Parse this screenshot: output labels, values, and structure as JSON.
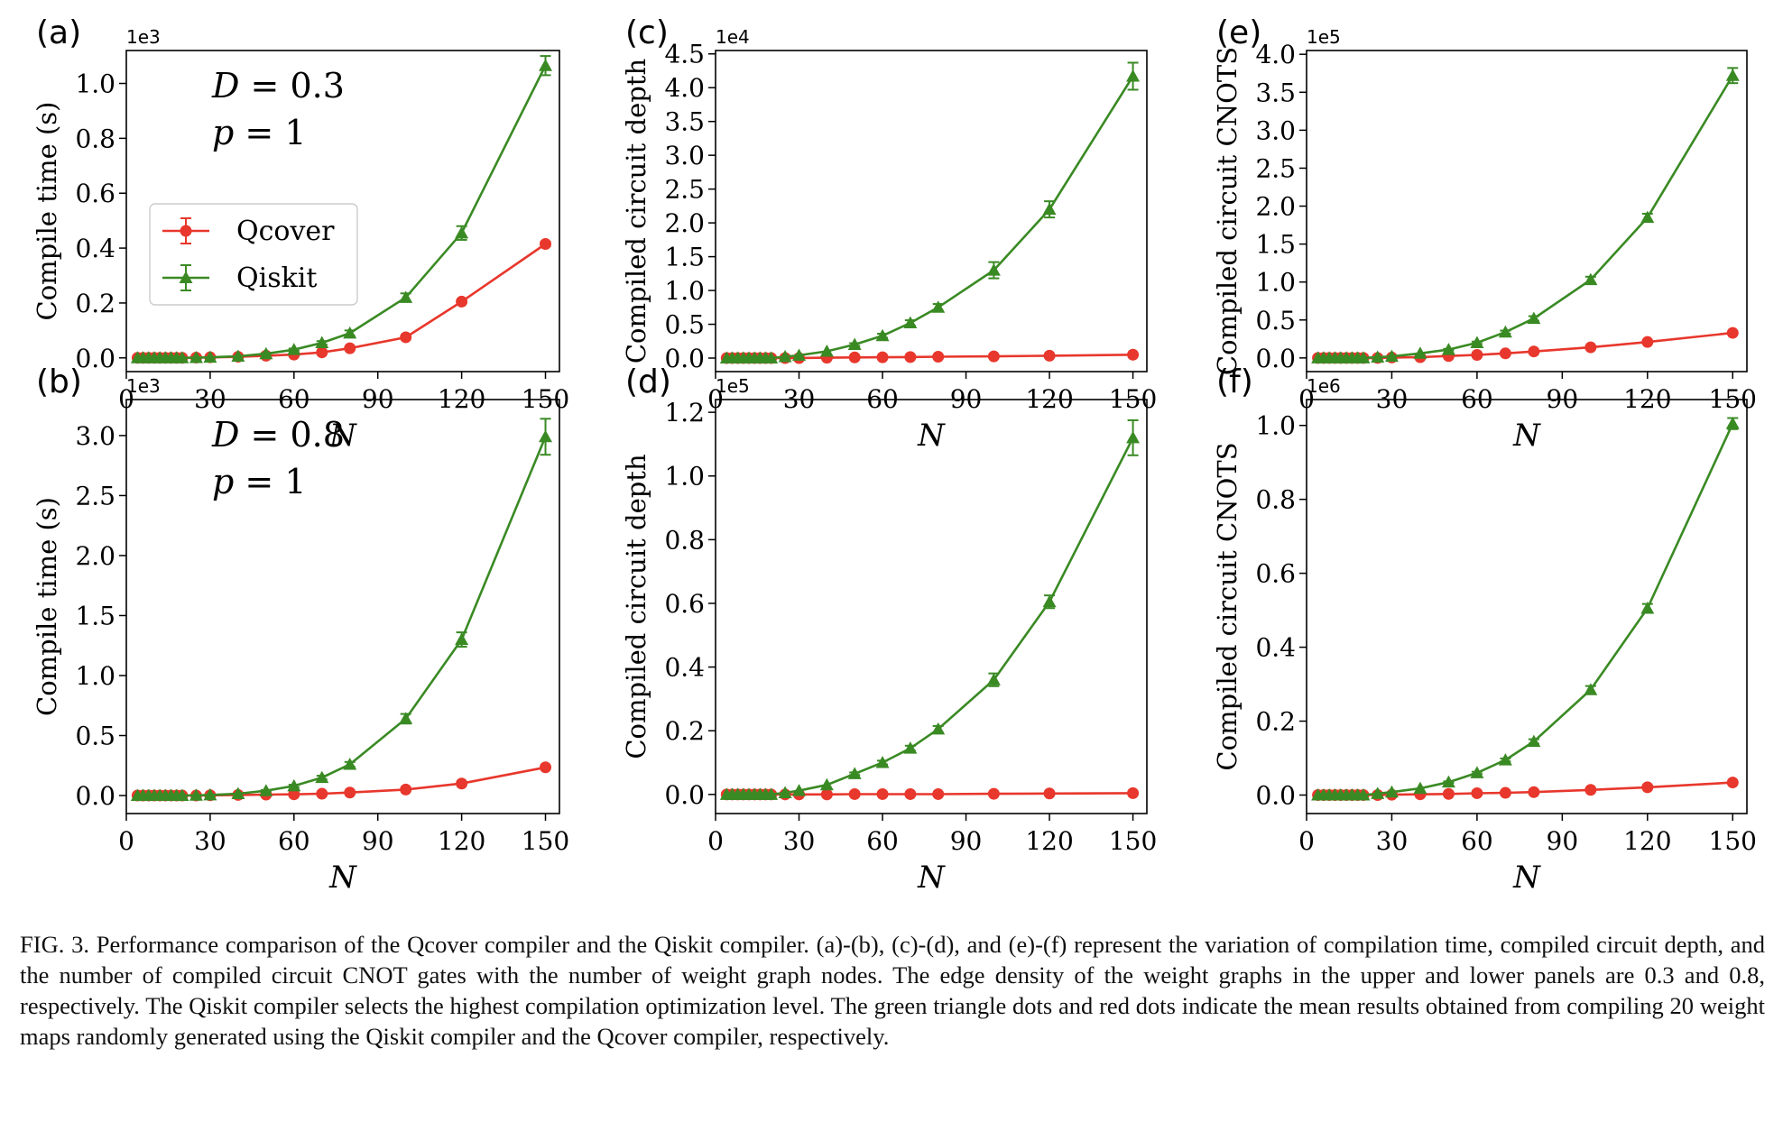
{
  "legend": {
    "items": [
      "Qcover",
      "Qiskit"
    ]
  },
  "colors": {
    "qcover": "#e8372c",
    "qiskit": "#3a8a24"
  },
  "caption": "FIG. 3. Performance comparison of the Qcover compiler and the Qiskit compiler. (a)-(b), (c)-(d), and (e)-(f) represent the variation of compilation time, compiled circuit depth, and the number of compiled circuit CNOT gates with the number of weight graph nodes. The edge density of the weight graphs in the upper and lower panels are 0.3 and 0.8, respectively. The Qiskit compiler selects the highest compilation optimization level. The green triangle dots and red dots indicate the mean results obtained from compiling 20 weight maps randomly generated using the Qiskit compiler and the Qcover compiler, respectively.",
  "chart_data": [
    {
      "panel": "(a)",
      "type": "line",
      "xlabel": "N",
      "ylabel": "Compile time (s)",
      "multiplier": "1e3",
      "xlim": [
        0,
        155
      ],
      "ylim": [
        -0.05,
        1.12
      ],
      "xticks": [
        0,
        30,
        60,
        90,
        120,
        150
      ],
      "xtick_labels": [
        "0",
        "30",
        "60",
        "90",
        "120",
        "150"
      ],
      "yticks": [
        0,
        0.2,
        0.4,
        0.6,
        0.8,
        1.0
      ],
      "ytick_labels": [
        "0.0",
        "0.2",
        "0.4",
        "0.6",
        "0.8",
        "1.0"
      ],
      "annotations": [
        "D = 0.3",
        "p = 1"
      ],
      "legend_location": "center-left",
      "x": [
        4,
        6,
        8,
        10,
        12,
        14,
        16,
        18,
        20,
        25,
        30,
        40,
        50,
        60,
        70,
        80,
        100,
        120,
        150
      ],
      "series": [
        {
          "name": "Qcover",
          "marker": "circle",
          "values": [
            0,
            0,
            0,
            0,
            0,
            0,
            0,
            0,
            0,
            0.001,
            0.002,
            0.004,
            0.008,
            0.012,
            0.02,
            0.035,
            0.075,
            0.205,
            0.415
          ],
          "errors": [
            0,
            0,
            0,
            0,
            0,
            0,
            0,
            0,
            0,
            0,
            0,
            0,
            0,
            0,
            0,
            0.002,
            0.003,
            0.005,
            0.008
          ]
        },
        {
          "name": "Qiskit",
          "marker": "triangle",
          "values": [
            0,
            0,
            0,
            0,
            0,
            0,
            0,
            0,
            0,
            0.001,
            0.002,
            0.006,
            0.015,
            0.03,
            0.055,
            0.09,
            0.22,
            0.455,
            1.065
          ],
          "errors": [
            0,
            0,
            0,
            0,
            0,
            0,
            0,
            0,
            0,
            0,
            0,
            0,
            0.002,
            0.004,
            0.006,
            0.01,
            0.015,
            0.025,
            0.035
          ]
        }
      ]
    },
    {
      "panel": "(b)",
      "type": "line",
      "xlabel": "N",
      "ylabel": "Compile time (s)",
      "multiplier": "1e3",
      "xlim": [
        0,
        155
      ],
      "ylim": [
        -0.15,
        3.3
      ],
      "xticks": [
        0,
        30,
        60,
        90,
        120,
        150
      ],
      "xtick_labels": [
        "0",
        "30",
        "60",
        "90",
        "120",
        "150"
      ],
      "yticks": [
        0,
        0.5,
        1.0,
        1.5,
        2.0,
        2.5,
        3.0
      ],
      "ytick_labels": [
        "0.0",
        "0.5",
        "1.0",
        "1.5",
        "2.0",
        "2.5",
        "3.0"
      ],
      "annotations": [
        "D = 0.8",
        "p = 1"
      ],
      "x": [
        4,
        6,
        8,
        10,
        12,
        14,
        16,
        18,
        20,
        25,
        30,
        40,
        50,
        60,
        70,
        80,
        100,
        120,
        150
      ],
      "series": [
        {
          "name": "Qcover",
          "marker": "circle",
          "values": [
            0,
            0,
            0,
            0,
            0,
            0,
            0,
            0,
            0,
            0,
            0.002,
            0.005,
            0.008,
            0.01,
            0.015,
            0.025,
            0.05,
            0.1,
            0.235
          ],
          "errors": [
            0,
            0,
            0,
            0,
            0,
            0,
            0,
            0,
            0,
            0,
            0,
            0,
            0,
            0,
            0,
            0,
            0.005,
            0.008,
            0.012
          ]
        },
        {
          "name": "Qiskit",
          "marker": "triangle",
          "values": [
            0,
            0,
            0,
            0,
            0,
            0,
            0,
            0,
            0,
            0.002,
            0.005,
            0.015,
            0.04,
            0.08,
            0.15,
            0.26,
            0.64,
            1.3,
            2.99
          ],
          "errors": [
            0,
            0,
            0,
            0,
            0,
            0,
            0,
            0,
            0,
            0,
            0,
            0,
            0.005,
            0.01,
            0.015,
            0.02,
            0.04,
            0.06,
            0.15
          ]
        }
      ]
    },
    {
      "panel": "(c)",
      "type": "line",
      "xlabel": "N",
      "ylabel": "Compiled circuit depth",
      "multiplier": "1e4",
      "xlim": [
        0,
        155
      ],
      "ylim": [
        -0.2,
        4.55
      ],
      "xticks": [
        0,
        30,
        60,
        90,
        120,
        150
      ],
      "xtick_labels": [
        "0",
        "30",
        "60",
        "90",
        "120",
        "150"
      ],
      "yticks": [
        0,
        0.5,
        1.0,
        1.5,
        2.0,
        2.5,
        3.0,
        3.5,
        4.0,
        4.5
      ],
      "ytick_labels": [
        "0.0",
        "0.5",
        "1.0",
        "1.5",
        "2.0",
        "2.5",
        "3.0",
        "3.5",
        "4.0",
        "4.5"
      ],
      "x": [
        4,
        6,
        8,
        10,
        12,
        14,
        16,
        18,
        20,
        25,
        30,
        40,
        50,
        60,
        70,
        80,
        100,
        120,
        150
      ],
      "series": [
        {
          "name": "Qcover",
          "marker": "circle",
          "values": [
            0,
            0,
            0,
            0,
            0,
            0,
            0,
            0,
            0,
            0,
            0,
            0.005,
            0.01,
            0.012,
            0.015,
            0.02,
            0.025,
            0.035,
            0.05
          ],
          "errors": [
            0,
            0,
            0,
            0,
            0,
            0,
            0,
            0,
            0,
            0,
            0,
            0,
            0,
            0,
            0,
            0,
            0,
            0,
            0
          ]
        },
        {
          "name": "Qiskit",
          "marker": "triangle",
          "values": [
            0,
            0,
            0,
            0,
            0,
            0,
            0,
            0,
            0,
            0.02,
            0.04,
            0.1,
            0.2,
            0.33,
            0.52,
            0.75,
            1.3,
            2.2,
            4.17
          ],
          "errors": [
            0,
            0,
            0,
            0,
            0,
            0,
            0,
            0,
            0,
            0,
            0,
            0,
            0.02,
            0.03,
            0.04,
            0.05,
            0.12,
            0.12,
            0.2
          ]
        }
      ]
    },
    {
      "panel": "(d)",
      "type": "line",
      "xlabel": "N",
      "ylabel": "Compiled circuit depth",
      "multiplier": "1e5",
      "xlim": [
        0,
        155
      ],
      "ylim": [
        -0.06,
        1.24
      ],
      "xticks": [
        0,
        30,
        60,
        90,
        120,
        150
      ],
      "xtick_labels": [
        "0",
        "30",
        "60",
        "90",
        "120",
        "150"
      ],
      "yticks": [
        0,
        0.2,
        0.4,
        0.6,
        0.8,
        1.0,
        1.2
      ],
      "ytick_labels": [
        "0.0",
        "0.2",
        "0.4",
        "0.6",
        "0.8",
        "1.0",
        "1.2"
      ],
      "x": [
        4,
        6,
        8,
        10,
        12,
        14,
        16,
        18,
        20,
        25,
        30,
        40,
        50,
        60,
        70,
        80,
        100,
        120,
        150
      ],
      "series": [
        {
          "name": "Qcover",
          "marker": "circle",
          "values": [
            0,
            0,
            0,
            0,
            0,
            0,
            0,
            0,
            0,
            0,
            0,
            0,
            0.001,
            0.001,
            0.001,
            0.001,
            0.002,
            0.003,
            0.004
          ],
          "errors": [
            0,
            0,
            0,
            0,
            0,
            0,
            0,
            0,
            0,
            0,
            0,
            0,
            0,
            0,
            0,
            0,
            0,
            0,
            0
          ]
        },
        {
          "name": "Qiskit",
          "marker": "triangle",
          "values": [
            0,
            0,
            0,
            0,
            0,
            0,
            0,
            0,
            0,
            0.005,
            0.012,
            0.03,
            0.065,
            0.1,
            0.145,
            0.205,
            0.36,
            0.605,
            1.12
          ],
          "errors": [
            0,
            0,
            0,
            0,
            0,
            0,
            0,
            0,
            0,
            0,
            0,
            0,
            0.004,
            0.006,
            0.008,
            0.01,
            0.02,
            0.02,
            0.055
          ]
        }
      ]
    },
    {
      "panel": "(e)",
      "type": "line",
      "xlabel": "N",
      "ylabel": "Compiled circuit CNOTS",
      "multiplier": "1e5",
      "xlim": [
        0,
        155
      ],
      "ylim": [
        -0.18,
        4.05
      ],
      "xticks": [
        0,
        30,
        60,
        90,
        120,
        150
      ],
      "xtick_labels": [
        "0",
        "30",
        "60",
        "90",
        "120",
        "150"
      ],
      "yticks": [
        0,
        0.5,
        1.0,
        1.5,
        2.0,
        2.5,
        3.0,
        3.5,
        4.0
      ],
      "ytick_labels": [
        "0.0",
        "0.5",
        "1.0",
        "1.5",
        "2.0",
        "2.5",
        "3.0",
        "3.5",
        "4.0"
      ],
      "x": [
        4,
        6,
        8,
        10,
        12,
        14,
        16,
        18,
        20,
        25,
        30,
        40,
        50,
        60,
        70,
        80,
        100,
        120,
        150
      ],
      "series": [
        {
          "name": "Qcover",
          "marker": "circle",
          "values": [
            0,
            0,
            0,
            0,
            0,
            0,
            0,
            0,
            0,
            0,
            0.005,
            0.01,
            0.025,
            0.04,
            0.06,
            0.085,
            0.14,
            0.21,
            0.33
          ],
          "errors": [
            0,
            0,
            0,
            0,
            0,
            0,
            0,
            0,
            0,
            0,
            0,
            0,
            0,
            0,
            0,
            0,
            0,
            0,
            0
          ]
        },
        {
          "name": "Qiskit",
          "marker": "triangle",
          "values": [
            0,
            0,
            0,
            0,
            0,
            0,
            0,
            0,
            0,
            0.01,
            0.02,
            0.06,
            0.11,
            0.2,
            0.34,
            0.52,
            1.03,
            1.85,
            3.72
          ],
          "errors": [
            0,
            0,
            0,
            0,
            0,
            0,
            0,
            0,
            0,
            0,
            0,
            0,
            0.01,
            0.015,
            0.02,
            0.03,
            0.04,
            0.05,
            0.1
          ]
        }
      ]
    },
    {
      "panel": "(f)",
      "type": "line",
      "xlabel": "N",
      "ylabel": "Compiled circuit CNOTS",
      "multiplier": "1e6",
      "xlim": [
        0,
        155
      ],
      "ylim": [
        -0.05,
        1.07
      ],
      "xticks": [
        0,
        30,
        60,
        90,
        120,
        150
      ],
      "xtick_labels": [
        "0",
        "30",
        "60",
        "90",
        "120",
        "150"
      ],
      "yticks": [
        0,
        0.2,
        0.4,
        0.6,
        0.8,
        1.0
      ],
      "ytick_labels": [
        "0.0",
        "0.2",
        "0.4",
        "0.6",
        "0.8",
        "1.0"
      ],
      "x": [
        4,
        6,
        8,
        10,
        12,
        14,
        16,
        18,
        20,
        25,
        30,
        40,
        50,
        60,
        70,
        80,
        100,
        120,
        150
      ],
      "series": [
        {
          "name": "Qcover",
          "marker": "circle",
          "values": [
            0,
            0,
            0,
            0,
            0,
            0,
            0,
            0,
            0,
            0,
            0.001,
            0.002,
            0.003,
            0.005,
            0.006,
            0.008,
            0.014,
            0.021,
            0.034
          ],
          "errors": [
            0,
            0,
            0,
            0,
            0,
            0,
            0,
            0,
            0,
            0,
            0,
            0,
            0,
            0,
            0,
            0,
            0,
            0,
            0
          ]
        },
        {
          "name": "Qiskit",
          "marker": "triangle",
          "values": [
            0,
            0,
            0,
            0,
            0,
            0,
            0,
            0,
            0,
            0.004,
            0.008,
            0.018,
            0.035,
            0.06,
            0.095,
            0.145,
            0.285,
            0.505,
            1.005
          ],
          "errors": [
            0,
            0,
            0,
            0,
            0,
            0,
            0,
            0,
            0,
            0,
            0,
            0,
            0.002,
            0.003,
            0.004,
            0.006,
            0.01,
            0.012,
            0.015
          ]
        }
      ]
    }
  ]
}
